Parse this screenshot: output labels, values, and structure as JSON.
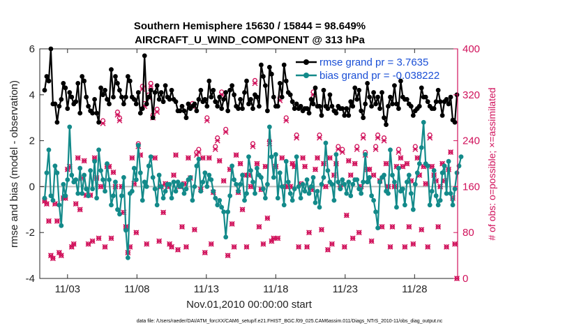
{
  "chart_data": {
    "type": "line",
    "title_line1": "Southern Hemisphere 15630 / 15844 = 98.649%",
    "title_line2": "AIRCRAFT_U_WIND_COMPONENT @ 313 hPa",
    "xlabel": "Nov.01,2010 00:00:00 start",
    "ylabel": "rmse and bias (model - observation)",
    "ylabel_right": "# of obs: o=possible; ×=assimilated",
    "footnote": "data file: /Users/raeder/DAI/ATM_forcXX/CAM6_setup/f.e21.FHIST_BGC.f09_025.CAM6assim.011/Diags_NTrS_2010-11/obs_diag_output.nc",
    "xlim": [
      0.5,
      30.6
    ],
    "ylim": [
      -4,
      6
    ],
    "ylim_right": [
      0,
      400
    ],
    "x_ticks": [
      2.5,
      7.5,
      12.5,
      17.5,
      22.5,
      27.5
    ],
    "x_tick_labels": [
      "11/03",
      "11/08",
      "11/13",
      "11/18",
      "11/23",
      "11/28"
    ],
    "y_ticks": [
      -4,
      -2,
      0,
      2,
      4,
      6
    ],
    "y_tick_labels": [
      "-4",
      "-2",
      "0",
      "2",
      "4",
      "6"
    ],
    "y_ticks_right": [
      0,
      80,
      160,
      240,
      320,
      400
    ],
    "y_tick_labels_right": [
      "0",
      "80",
      "160",
      "240",
      "320",
      "400"
    ],
    "zero_line": 0,
    "colors": {
      "rmse": "#000000",
      "bias": "#138a8a",
      "obs": "#d0105a",
      "legend_text": "#1a4fd6",
      "zero_line": "#bbbbbb"
    },
    "series": [
      {
        "name": "rmse grand pr = 3.7635",
        "axis": "left",
        "values": [
          4.2,
          4.8,
          4.6,
          6.0,
          3.6,
          3.6,
          2.8,
          3.5,
          3.8,
          4.5,
          4.3,
          3.4,
          4.1,
          3.9,
          3.6,
          3.7,
          4.5,
          3.2,
          4.8,
          4.6,
          3.9,
          3.5,
          3.3,
          3.2,
          3.8,
          3.2,
          2.8,
          4.3,
          4.0,
          4.2,
          3.8,
          3.6,
          5.1,
          3.9,
          4.8,
          4.5,
          4.2,
          3.9,
          3.6,
          3.9,
          4.8,
          4.6,
          3.9,
          3.8,
          3.6,
          4.1,
          3.2,
          3.4,
          5.7,
          3.6,
          3.9,
          4.2,
          3.0,
          4.1,
          4.4,
          3.8,
          4.1,
          3.7,
          4.4,
          3.9,
          3.8,
          4.2,
          3.8,
          3.7,
          3.3,
          3.3,
          3.5,
          3.3,
          3.0,
          3.6,
          3.4,
          3.5,
          3.6,
          3.3,
          3.8,
          4.2,
          3.7,
          3.8,
          3.5,
          4.6,
          3.9,
          4.2,
          3.7,
          3.5,
          3.9,
          3.4,
          3.8,
          4.1,
          3.3,
          4.2,
          4.4,
          4.0,
          3.5,
          3.4,
          3.8,
          3.4,
          4.1,
          4.6,
          3.6,
          3.8,
          3.4,
          4.0,
          3.9,
          3.5,
          5.3,
          4.8,
          4.4,
          3.3,
          5.2,
          4.9,
          3.9,
          3.5,
          3.5,
          4.5,
          3.9,
          5.3,
          4.6,
          4.1,
          4.0,
          3.7,
          3.4,
          3.6,
          3.4,
          3.5,
          3.3,
          3.4,
          3.4,
          3.2,
          3.8,
          3.6,
          4.3,
          3.5,
          3.5,
          3.1,
          4.2,
          3.5,
          3.4,
          4.0,
          3.5,
          3.3,
          3.2,
          3.5,
          3.4,
          3.4,
          3.1,
          3.4,
          3.1,
          3.7,
          3.5,
          4.3,
          3.8,
          4.2,
          3.3,
          3.0,
          3.6,
          4.5,
          3.9,
          3.5,
          4.1,
          3.6,
          3.9,
          3.4,
          4.1,
          3.0,
          2.7,
          3.5,
          3.9,
          3.6,
          4.4,
          3.6,
          3.4,
          4.6,
          3.9,
          3.8,
          3.8,
          3.6,
          3.5,
          3.1,
          3.3,
          3.4,
          3.5,
          4.3,
          3.9,
          3.9,
          3.7,
          3.5,
          3.4,
          3.4,
          3.7,
          4.2,
          3.7,
          3.1,
          3.7,
          3.8,
          3.6,
          3.9,
          2.9,
          2.8,
          4.0
        ]
      },
      {
        "name": "bias grand pr = -0.038222",
        "axis": "left",
        "values": [
          -0.5,
          0.6,
          1.6,
          -0.4,
          -0.6,
          0.9,
          0.6,
          -0.8,
          -1.7,
          0.1,
          -0.4,
          0.3,
          2.6,
          0.5,
          0.2,
          0.3,
          -0.3,
          0.8,
          -0.3,
          0.5,
          -0.1,
          -0.4,
          0.7,
          -0.1,
          1.1,
          -0.5,
          1.6,
          0.7,
          0.3,
          -0.2,
          1.0,
          0.3,
          -0.8,
          -0.4,
          0.2,
          -1.0,
          -1.2,
          -0.4,
          0.4,
          -1.9,
          -3.1,
          -0.3,
          -0.2,
          0.8,
          0.3,
          1.8,
          0.6,
          -0.6,
          0.2,
          0.0,
          0.9,
          1.3,
          0.4,
          -0.1,
          -0.8,
          0.5,
          0.0,
          -0.5,
          -0.2,
          0.1,
          0.1,
          -0.5,
          0.2,
          -0.2,
          0.2,
          0.0,
          0.1,
          -0.3,
          -0.1,
          0.3,
          0.4,
          -0.6,
          0.0,
          0.9,
          1.2,
          -0.2,
          0.2,
          0.6,
          0.0,
          0.5,
          0.3,
          -0.2,
          -0.5,
          -0.8,
          -0.6,
          -0.9,
          -1.1,
          -2.2,
          -1.1,
          -0.4,
          0.9,
          0.3,
          0.1,
          -0.2,
          0.1,
          0.5,
          -0.6,
          -0.3,
          1.3,
          0.7,
          0.2,
          -0.3,
          0.8,
          0.5,
          0.4,
          -0.1,
          -0.5,
          0.1,
          2.6,
          1.3,
          0.4,
          1.4,
          -0.5,
          0.6,
          0.0,
          -0.8,
          1.1,
          0.2,
          -0.3,
          -0.6,
          -0.1,
          1.3,
          0.0,
          -0.5,
          0.1,
          -0.2,
          0.3,
          -0.3,
          0.0,
          0.4,
          -0.7,
          -0.2,
          -0.9,
          0.1,
          0.4,
          1.9,
          0.7,
          0.2,
          0.1,
          -0.6,
          1.4,
          0.2,
          -0.1,
          0.3,
          0.1,
          -0.3,
          0.2,
          -0.4,
          0.1,
          0.3,
          0.3,
          -0.1,
          -0.3,
          0.2,
          1.4,
          0.2,
          0.4,
          -0.4,
          -0.6,
          -1.1,
          -1.8,
          0.2,
          0.4,
          0.5,
          -0.2,
          -0.3,
          1.6,
          0.5,
          0.2,
          -0.9,
          0.8,
          -0.2,
          -0.1,
          -0.8,
          0.2,
          0.5,
          -0.3,
          -1.0,
          0.1,
          0.6,
          1.0,
          1.7,
          2.8,
          1.0,
          0.9,
          -0.8,
          -0.2,
          0.7,
          -0.4,
          -0.8,
          -0.6,
          0.6,
          0.9,
          -0.3,
          1.1,
          -0.3,
          -0.8,
          -0.1,
          0.6,
          0.9,
          1.3
        ]
      }
    ],
    "obs_possible": [
      135,
      130,
      100,
      40,
      35,
      130,
      100,
      45,
      40,
      140,
      140,
      190,
      195,
      55,
      60,
      130,
      210,
      120,
      175,
      205,
      145,
      60,
      145,
      65,
      210,
      175,
      70,
      160,
      275,
      55,
      195,
      195,
      70,
      185,
      160,
      290,
      280,
      160,
      115,
      90,
      45,
      55,
      210,
      165,
      80,
      235,
      215,
      335,
      305,
      60,
      320,
      340,
      285,
      210,
      295,
      65,
      160,
      115,
      165,
      160,
      60,
      55,
      180,
      215,
      50,
      160,
      90,
      165,
      55,
      210,
      175,
      305,
      85,
      220,
      225,
      155,
      210,
      45,
      280,
      210,
      60,
      150,
      230,
      245,
      205,
      325,
      170,
      260,
      40,
      190,
      95,
      55,
      215,
      150,
      200,
      120,
      180,
      55,
      180,
      160,
      235,
      345,
      200,
      90,
      155,
      60,
      195,
      105,
      240,
      65,
      70,
      195,
      70,
      315,
      210,
      160,
      280,
      160,
      160,
      200,
      195,
      250,
      55,
      165,
      210,
      195,
      55,
      80,
      155,
      325,
      190,
      210,
      250,
      85,
      200,
      160,
      50,
      210,
      60,
      180,
      200,
      230,
      160,
      225,
      55,
      110,
      205,
      180,
      70,
      200,
      230,
      80,
      160,
      250,
      220,
      190,
      190,
      65,
      180,
      230,
      250,
      170,
      90,
      245,
      200,
      160,
      55,
      90,
      160,
      195,
      225,
      210,
      195,
      55,
      200,
      90,
      170,
      60,
      230,
      210,
      180,
      85,
      195,
      165,
      55,
      250,
      195,
      180,
      170,
      90,
      160,
      200,
      170,
      55,
      190,
      220,
      140,
      60,
      0
    ],
    "obs_assimilated": [
      135,
      130,
      100,
      40,
      35,
      130,
      100,
      45,
      40,
      140,
      140,
      190,
      195,
      55,
      60,
      130,
      210,
      120,
      175,
      205,
      145,
      60,
      145,
      65,
      210,
      175,
      70,
      160,
      270,
      55,
      195,
      195,
      70,
      185,
      160,
      285,
      275,
      160,
      115,
      90,
      45,
      55,
      210,
      165,
      80,
      230,
      215,
      330,
      300,
      60,
      315,
      335,
      280,
      210,
      290,
      65,
      160,
      115,
      165,
      160,
      60,
      55,
      180,
      215,
      50,
      160,
      90,
      165,
      55,
      210,
      175,
      300,
      85,
      215,
      220,
      155,
      210,
      45,
      275,
      210,
      60,
      150,
      225,
      240,
      205,
      320,
      170,
      255,
      40,
      190,
      95,
      55,
      215,
      150,
      200,
      120,
      180,
      55,
      180,
      160,
      230,
      340,
      200,
      90,
      155,
      60,
      195,
      105,
      235,
      65,
      70,
      195,
      70,
      310,
      210,
      160,
      275,
      160,
      160,
      200,
      195,
      245,
      55,
      165,
      210,
      195,
      55,
      80,
      155,
      320,
      190,
      210,
      245,
      85,
      200,
      160,
      50,
      210,
      60,
      180,
      200,
      225,
      160,
      220,
      55,
      110,
      205,
      180,
      70,
      200,
      225,
      80,
      160,
      245,
      215,
      190,
      190,
      65,
      180,
      225,
      245,
      170,
      90,
      240,
      200,
      160,
      55,
      90,
      160,
      195,
      220,
      210,
      195,
      55,
      200,
      90,
      170,
      60,
      225,
      210,
      180,
      85,
      195,
      165,
      55,
      245,
      195,
      180,
      170,
      90,
      160,
      200,
      170,
      55,
      190,
      220,
      140,
      60,
      0
    ]
  }
}
